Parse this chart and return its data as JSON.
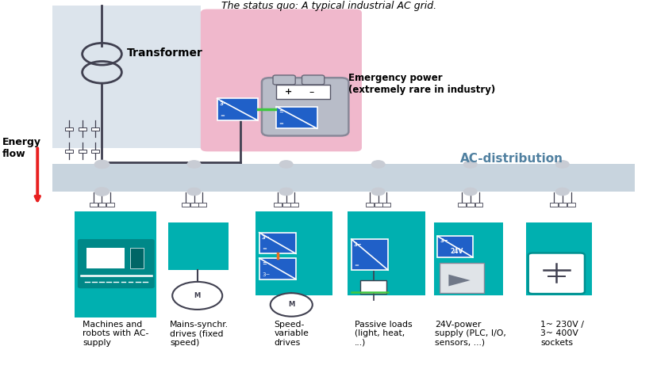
{
  "title": "The status quo: A typical industrial AC grid.",
  "bg_color": "#ffffff",
  "transformer_label": "Transformer",
  "energy_flow_label": "Energy\nflow",
  "emergency_label": "Emergency power\n(extremely rare in industry)",
  "ac_dist_label": "AC-distribution",
  "pink_bg": "#f0b8cc",
  "teal_color": "#00b0b0",
  "blue_box_color": "#2060c8",
  "dark_gray": "#404050",
  "light_gray": "#c8ccd4",
  "green_line": "#40c840",
  "orange_line": "#e87020",
  "red_arrow": "#e82020",
  "load_labels": [
    "Machines and\nrobots with AC-\nsupply",
    "Mains-synchr.\ndrives (fixed\nspeed)",
    "Speed-\nvariable\ndrives",
    "Passive loads\n(light, heat,\n...)",
    "24V-power\nsupply (PLC, I/O,\nsensors, ...)",
    "1~ 230V /\n3~ 400V\nsockets"
  ]
}
